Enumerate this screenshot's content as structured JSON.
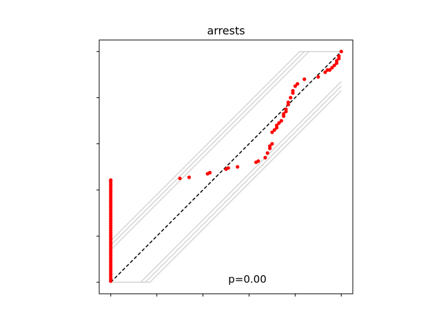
{
  "chart_data": {
    "type": "scatter",
    "title": "arrests",
    "annotation": "p=0.00",
    "xlim": [
      -0.05,
      1.05
    ],
    "ylim": [
      -0.05,
      1.05
    ],
    "x_tick_values": [
      0,
      0.2,
      0.4,
      0.6,
      0.8,
      1.0
    ],
    "y_tick_values": [
      0,
      0.2,
      0.4,
      0.6,
      0.8,
      1.0
    ],
    "tick_labels_visible": false,
    "grid": false,
    "reference_line": {
      "from": [
        0,
        0
      ],
      "to": [
        1,
        1
      ],
      "style": "dashed",
      "color": "#000000"
    },
    "envelope_color": "#d3d3d3",
    "point_color": "#ff0000",
    "envelope_upper": [
      {
        "name": "",
        "points": [
          [
            0,
            0.14
          ],
          [
            0.86,
            1.0
          ],
          [
            1.0,
            1.0
          ]
        ]
      },
      {
        "name": "",
        "points": [
          [
            0,
            0.16
          ],
          [
            0.84,
            1.0
          ],
          [
            1.0,
            1.0
          ]
        ]
      },
      {
        "name": "",
        "points": [
          [
            0,
            0.18
          ],
          [
            0.82,
            1.0
          ],
          [
            1.0,
            1.0
          ]
        ]
      }
    ],
    "envelope_lower": [
      {
        "name": "",
        "points": [
          [
            0,
            0.0
          ],
          [
            0.13,
            0.0
          ],
          [
            1.0,
            0.87
          ]
        ]
      },
      {
        "name": "",
        "points": [
          [
            0,
            0.0
          ],
          [
            0.15,
            0.0
          ],
          [
            1.0,
            0.85
          ]
        ]
      },
      {
        "name": "",
        "points": [
          [
            0,
            0.0
          ],
          [
            0.17,
            0.0
          ],
          [
            1.0,
            0.83
          ]
        ]
      }
    ],
    "series": [
      {
        "name": "",
        "x": [
          0,
          0,
          0,
          0,
          0,
          0,
          0,
          0,
          0,
          0,
          0,
          0,
          0,
          0,
          0,
          0,
          0,
          0,
          0,
          0,
          0,
          0,
          0,
          0,
          0,
          0,
          0,
          0,
          0,
          0,
          0,
          0,
          0,
          0,
          0,
          0,
          0,
          0,
          0,
          0,
          0,
          0,
          0,
          0,
          0,
          0.3,
          0.34,
          0.42,
          0.43,
          0.5,
          0.51,
          0.55,
          0.63,
          0.64,
          0.67,
          0.68,
          0.69,
          0.69,
          0.7,
          0.7,
          0.71,
          0.72,
          0.72,
          0.73,
          0.74,
          0.75,
          0.75,
          0.76,
          0.76,
          0.77,
          0.77,
          0.78,
          0.79,
          0.79,
          0.8,
          0.81,
          0.84,
          0.9,
          0.93,
          0.94,
          0.95,
          0.96,
          0.97,
          0.98,
          0.98,
          0.99,
          0.99,
          1.0
        ],
        "y": [
          0.005,
          0.015,
          0.025,
          0.035,
          0.045,
          0.055,
          0.065,
          0.075,
          0.085,
          0.095,
          0.105,
          0.115,
          0.125,
          0.135,
          0.145,
          0.155,
          0.165,
          0.175,
          0.185,
          0.195,
          0.205,
          0.215,
          0.225,
          0.235,
          0.245,
          0.255,
          0.265,
          0.275,
          0.285,
          0.295,
          0.305,
          0.315,
          0.325,
          0.335,
          0.345,
          0.355,
          0.365,
          0.375,
          0.385,
          0.395,
          0.405,
          0.415,
          0.425,
          0.435,
          0.443,
          0.45,
          0.455,
          0.47,
          0.475,
          0.49,
          0.495,
          0.5,
          0.52,
          0.525,
          0.54,
          0.56,
          0.58,
          0.59,
          0.6,
          0.65,
          0.66,
          0.67,
          0.68,
          0.69,
          0.7,
          0.72,
          0.73,
          0.74,
          0.75,
          0.77,
          0.78,
          0.8,
          0.82,
          0.83,
          0.85,
          0.86,
          0.88,
          0.89,
          0.91,
          0.92,
          0.92,
          0.93,
          0.94,
          0.95,
          0.96,
          0.97,
          0.98,
          1.0
        ]
      }
    ]
  }
}
